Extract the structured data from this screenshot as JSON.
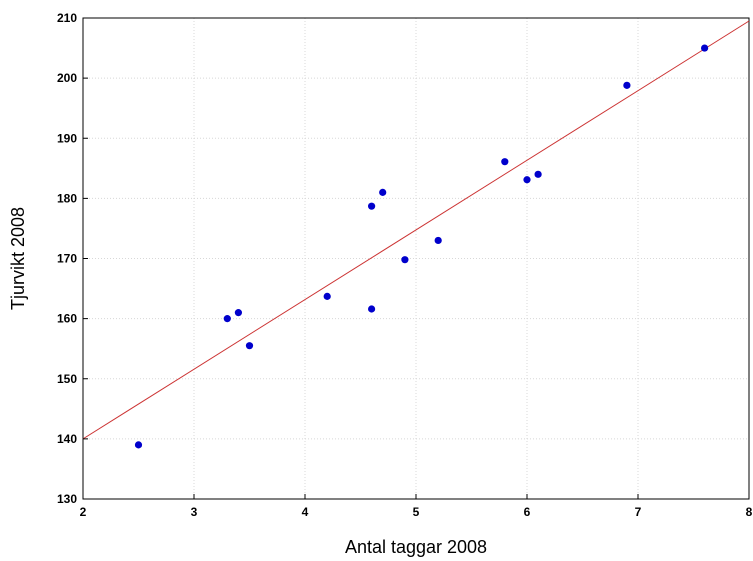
{
  "chart_data": {
    "type": "scatter",
    "xlabel": "Antal taggar 2008",
    "ylabel": "Tjurvikt 2008",
    "xlim": [
      2,
      8
    ],
    "ylim": [
      130,
      210
    ],
    "xticks": [
      "2",
      "3",
      "4",
      "5",
      "6",
      "7",
      "8"
    ],
    "yticks": [
      "130",
      "140",
      "150",
      "160",
      "170",
      "180",
      "190",
      "200",
      "210"
    ],
    "grid": true,
    "points": [
      {
        "x": 2.5,
        "y": 139.0
      },
      {
        "x": 3.3,
        "y": 160.0
      },
      {
        "x": 3.4,
        "y": 161.0
      },
      {
        "x": 3.5,
        "y": 155.5
      },
      {
        "x": 4.2,
        "y": 163.7
      },
      {
        "x": 4.6,
        "y": 161.6
      },
      {
        "x": 4.6,
        "y": 178.7
      },
      {
        "x": 4.7,
        "y": 181.0
      },
      {
        "x": 4.9,
        "y": 169.8
      },
      {
        "x": 5.2,
        "y": 173.0
      },
      {
        "x": 5.8,
        "y": 186.1
      },
      {
        "x": 6.0,
        "y": 183.1
      },
      {
        "x": 6.1,
        "y": 184.0
      },
      {
        "x": 6.9,
        "y": 198.8
      },
      {
        "x": 7.6,
        "y": 205.0
      }
    ],
    "fit_line": {
      "x": [
        2,
        8
      ],
      "y": [
        140.0,
        209.5
      ]
    },
    "colors": {
      "points": "#0000cc",
      "fit_line": "#cc3333",
      "grid": "#d8d8d8",
      "frame": "#000000"
    }
  }
}
